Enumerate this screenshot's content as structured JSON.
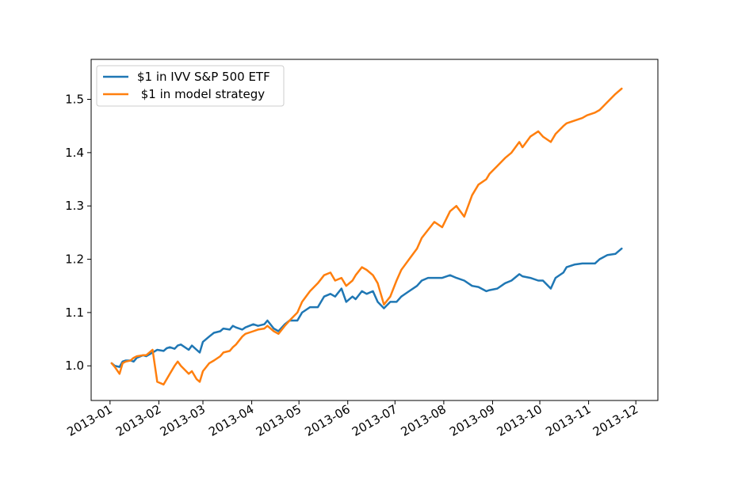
{
  "chart_data": {
    "type": "line",
    "title": "",
    "xlabel": "",
    "ylabel": "",
    "grid": false,
    "legend_position": "top-left",
    "xlim": [
      "2012-12-20",
      "2013-12-15"
    ],
    "ylim": [
      0.935,
      1.575
    ],
    "x_ticks": [
      "2013-01-01",
      "2013-02-01",
      "2013-03-01",
      "2013-04-01",
      "2013-05-01",
      "2013-06-01",
      "2013-07-01",
      "2013-08-01",
      "2013-09-01",
      "2013-10-01",
      "2013-11-01",
      "2013-12-01"
    ],
    "x_tick_labels": [
      "2013-01",
      "2013-02",
      "2013-03",
      "2013-04",
      "2013-05",
      "2013-06",
      "2013-07",
      "2013-08",
      "2013-09",
      "2013-10",
      "2013-11",
      "2013-12"
    ],
    "y_ticks": [
      1.0,
      1.1,
      1.2,
      1.3,
      1.4,
      1.5
    ],
    "y_tick_labels": [
      "1.0",
      "1.1",
      "1.2",
      "1.3",
      "1.4",
      "1.5"
    ],
    "series": [
      {
        "name": "$1 in IVV S&P 500 ETF",
        "color": "#1f77b4",
        "points": [
          [
            "2013-01-02",
            1.005
          ],
          [
            "2013-01-04",
            1.0
          ],
          [
            "2013-01-07",
            0.998
          ],
          [
            "2013-01-09",
            1.008
          ],
          [
            "2013-01-11",
            1.01
          ],
          [
            "2013-01-14",
            1.01
          ],
          [
            "2013-01-16",
            1.008
          ],
          [
            "2013-01-18",
            1.015
          ],
          [
            "2013-01-22",
            1.02
          ],
          [
            "2013-01-24",
            1.018
          ],
          [
            "2013-01-28",
            1.025
          ],
          [
            "2013-01-31",
            1.03
          ],
          [
            "2013-02-04",
            1.028
          ],
          [
            "2013-02-06",
            1.033
          ],
          [
            "2013-02-08",
            1.035
          ],
          [
            "2013-02-11",
            1.032
          ],
          [
            "2013-02-13",
            1.038
          ],
          [
            "2013-02-15",
            1.04
          ],
          [
            "2013-02-20",
            1.03
          ],
          [
            "2013-02-22",
            1.038
          ],
          [
            "2013-02-25",
            1.03
          ],
          [
            "2013-02-27",
            1.025
          ],
          [
            "2013-03-01",
            1.045
          ],
          [
            "2013-03-05",
            1.055
          ],
          [
            "2013-03-08",
            1.062
          ],
          [
            "2013-03-12",
            1.065
          ],
          [
            "2013-03-14",
            1.07
          ],
          [
            "2013-03-18",
            1.068
          ],
          [
            "2013-03-20",
            1.075
          ],
          [
            "2013-03-22",
            1.072
          ],
          [
            "2013-03-26",
            1.068
          ],
          [
            "2013-03-28",
            1.072
          ],
          [
            "2013-04-02",
            1.078
          ],
          [
            "2013-04-05",
            1.075
          ],
          [
            "2013-04-09",
            1.078
          ],
          [
            "2013-04-11",
            1.085
          ],
          [
            "2013-04-15",
            1.07
          ],
          [
            "2013-04-18",
            1.065
          ],
          [
            "2013-04-22",
            1.078
          ],
          [
            "2013-04-25",
            1.085
          ],
          [
            "2013-04-30",
            1.085
          ],
          [
            "2013-05-03",
            1.1
          ],
          [
            "2013-05-08",
            1.11
          ],
          [
            "2013-05-13",
            1.11
          ],
          [
            "2013-05-17",
            1.13
          ],
          [
            "2013-05-21",
            1.135
          ],
          [
            "2013-05-24",
            1.13
          ],
          [
            "2013-05-28",
            1.145
          ],
          [
            "2013-05-31",
            1.12
          ],
          [
            "2013-06-04",
            1.13
          ],
          [
            "2013-06-06",
            1.125
          ],
          [
            "2013-06-10",
            1.14
          ],
          [
            "2013-06-13",
            1.135
          ],
          [
            "2013-06-17",
            1.14
          ],
          [
            "2013-06-20",
            1.12
          ],
          [
            "2013-06-24",
            1.108
          ],
          [
            "2013-06-28",
            1.12
          ],
          [
            "2013-07-02",
            1.12
          ],
          [
            "2013-07-05",
            1.13
          ],
          [
            "2013-07-10",
            1.14
          ],
          [
            "2013-07-15",
            1.15
          ],
          [
            "2013-07-18",
            1.16
          ],
          [
            "2013-07-22",
            1.165
          ],
          [
            "2013-07-26",
            1.165
          ],
          [
            "2013-07-31",
            1.165
          ],
          [
            "2013-08-05",
            1.17
          ],
          [
            "2013-08-09",
            1.165
          ],
          [
            "2013-08-14",
            1.16
          ],
          [
            "2013-08-19",
            1.15
          ],
          [
            "2013-08-23",
            1.148
          ],
          [
            "2013-08-28",
            1.14
          ],
          [
            "2013-08-30",
            1.142
          ],
          [
            "2013-09-04",
            1.145
          ],
          [
            "2013-09-09",
            1.155
          ],
          [
            "2013-09-13",
            1.16
          ],
          [
            "2013-09-18",
            1.172
          ],
          [
            "2013-09-20",
            1.168
          ],
          [
            "2013-09-25",
            1.165
          ],
          [
            "2013-09-30",
            1.16
          ],
          [
            "2013-10-03",
            1.16
          ],
          [
            "2013-10-08",
            1.145
          ],
          [
            "2013-10-11",
            1.165
          ],
          [
            "2013-10-16",
            1.175
          ],
          [
            "2013-10-18",
            1.185
          ],
          [
            "2013-10-23",
            1.19
          ],
          [
            "2013-10-28",
            1.192
          ],
          [
            "2013-10-31",
            1.192
          ],
          [
            "2013-11-05",
            1.192
          ],
          [
            "2013-11-08",
            1.2
          ],
          [
            "2013-11-13",
            1.208
          ],
          [
            "2013-11-18",
            1.21
          ],
          [
            "2013-11-22",
            1.22
          ]
        ]
      },
      {
        "name": " $1 in model strategy",
        "color": "#ff7f0e",
        "points": [
          [
            "2013-01-02",
            1.005
          ],
          [
            "2013-01-04",
            0.998
          ],
          [
            "2013-01-07",
            0.985
          ],
          [
            "2013-01-09",
            1.005
          ],
          [
            "2013-01-11",
            1.008
          ],
          [
            "2013-01-14",
            1.01
          ],
          [
            "2013-01-16",
            1.015
          ],
          [
            "2013-01-18",
            1.018
          ],
          [
            "2013-01-22",
            1.02
          ],
          [
            "2013-01-24",
            1.02
          ],
          [
            "2013-01-28",
            1.03
          ],
          [
            "2013-01-31",
            0.97
          ],
          [
            "2013-02-04",
            0.965
          ],
          [
            "2013-02-06",
            0.975
          ],
          [
            "2013-02-08",
            0.985
          ],
          [
            "2013-02-11",
            1.0
          ],
          [
            "2013-02-13",
            1.008
          ],
          [
            "2013-02-15",
            1.0
          ],
          [
            "2013-02-20",
            0.985
          ],
          [
            "2013-02-22",
            0.99
          ],
          [
            "2013-02-25",
            0.975
          ],
          [
            "2013-02-27",
            0.97
          ],
          [
            "2013-03-01",
            0.99
          ],
          [
            "2013-03-05",
            1.005
          ],
          [
            "2013-03-08",
            1.01
          ],
          [
            "2013-03-12",
            1.018
          ],
          [
            "2013-03-14",
            1.025
          ],
          [
            "2013-03-18",
            1.028
          ],
          [
            "2013-03-20",
            1.035
          ],
          [
            "2013-03-22",
            1.04
          ],
          [
            "2013-03-26",
            1.055
          ],
          [
            "2013-03-28",
            1.06
          ],
          [
            "2013-04-02",
            1.065
          ],
          [
            "2013-04-05",
            1.068
          ],
          [
            "2013-04-09",
            1.07
          ],
          [
            "2013-04-11",
            1.075
          ],
          [
            "2013-04-15",
            1.065
          ],
          [
            "2013-04-18",
            1.06
          ],
          [
            "2013-04-22",
            1.075
          ],
          [
            "2013-04-25",
            1.085
          ],
          [
            "2013-04-30",
            1.1
          ],
          [
            "2013-05-03",
            1.12
          ],
          [
            "2013-05-08",
            1.14
          ],
          [
            "2013-05-13",
            1.155
          ],
          [
            "2013-05-17",
            1.17
          ],
          [
            "2013-05-21",
            1.175
          ],
          [
            "2013-05-24",
            1.16
          ],
          [
            "2013-05-28",
            1.165
          ],
          [
            "2013-05-31",
            1.15
          ],
          [
            "2013-06-04",
            1.16
          ],
          [
            "2013-06-06",
            1.17
          ],
          [
            "2013-06-10",
            1.185
          ],
          [
            "2013-06-13",
            1.18
          ],
          [
            "2013-06-17",
            1.17
          ],
          [
            "2013-06-20",
            1.155
          ],
          [
            "2013-06-24",
            1.115
          ],
          [
            "2013-06-28",
            1.13
          ],
          [
            "2013-07-02",
            1.16
          ],
          [
            "2013-07-05",
            1.18
          ],
          [
            "2013-07-10",
            1.2
          ],
          [
            "2013-07-15",
            1.22
          ],
          [
            "2013-07-18",
            1.24
          ],
          [
            "2013-07-22",
            1.255
          ],
          [
            "2013-07-26",
            1.27
          ],
          [
            "2013-07-31",
            1.26
          ],
          [
            "2013-08-05",
            1.29
          ],
          [
            "2013-08-09",
            1.3
          ],
          [
            "2013-08-14",
            1.28
          ],
          [
            "2013-08-19",
            1.32
          ],
          [
            "2013-08-23",
            1.34
          ],
          [
            "2013-08-28",
            1.35
          ],
          [
            "2013-08-30",
            1.36
          ],
          [
            "2013-09-04",
            1.375
          ],
          [
            "2013-09-09",
            1.39
          ],
          [
            "2013-09-13",
            1.4
          ],
          [
            "2013-09-18",
            1.42
          ],
          [
            "2013-09-20",
            1.41
          ],
          [
            "2013-09-25",
            1.43
          ],
          [
            "2013-09-30",
            1.44
          ],
          [
            "2013-10-03",
            1.43
          ],
          [
            "2013-10-08",
            1.42
          ],
          [
            "2013-10-11",
            1.435
          ],
          [
            "2013-10-16",
            1.45
          ],
          [
            "2013-10-18",
            1.455
          ],
          [
            "2013-10-23",
            1.46
          ],
          [
            "2013-10-28",
            1.465
          ],
          [
            "2013-10-31",
            1.47
          ],
          [
            "2013-11-05",
            1.475
          ],
          [
            "2013-11-08",
            1.48
          ],
          [
            "2013-11-13",
            1.495
          ],
          [
            "2013-11-18",
            1.51
          ],
          [
            "2013-11-22",
            1.52
          ]
        ]
      }
    ]
  }
}
